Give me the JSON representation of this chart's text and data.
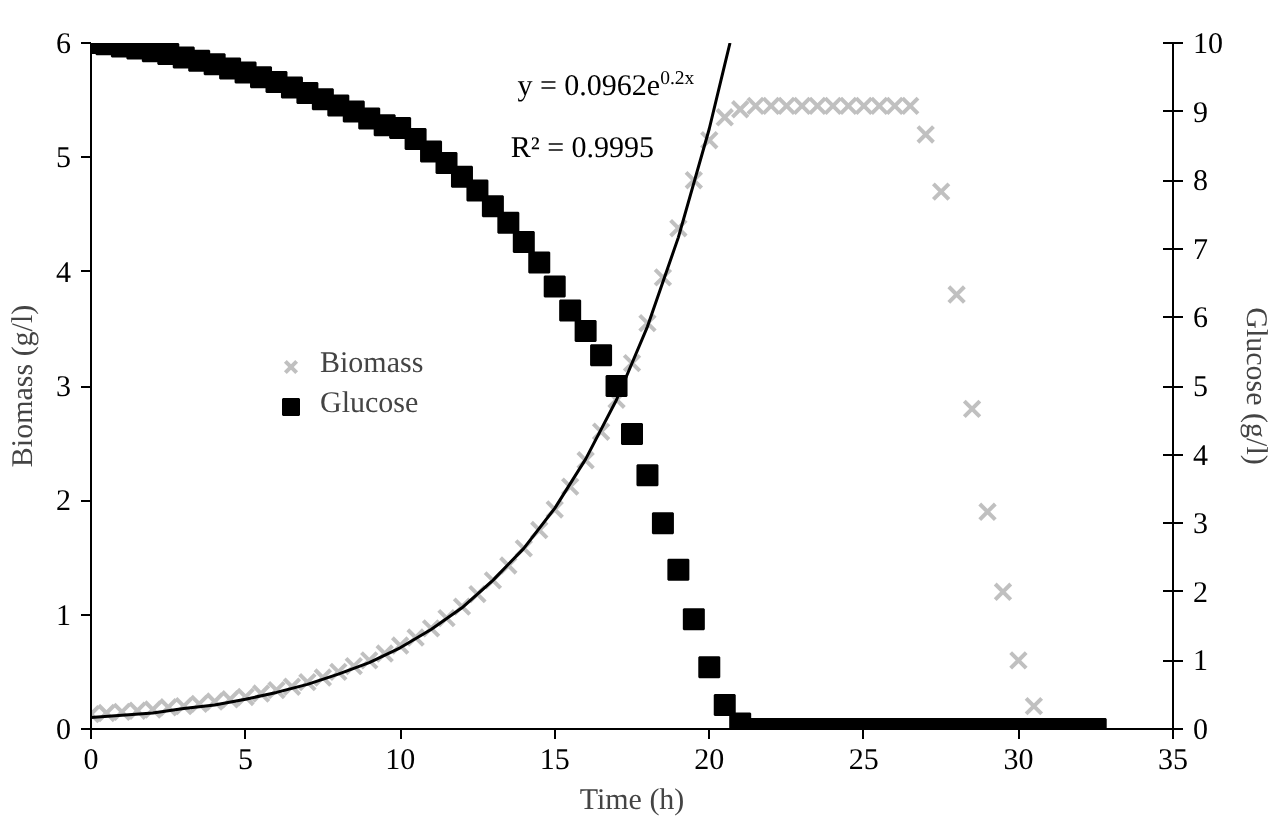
{
  "chart_data": {
    "type": "scatter",
    "xlabel": "Time (h)",
    "ylabel": "Biomass (g/l)",
    "y2label": "Glucose (g/l)",
    "annotations": [
      "y = 0.0962e$^{0.2x}$",
      "R² = 0.9995"
    ],
    "xlim": [
      0,
      35
    ],
    "xticks": [
      0,
      5,
      10,
      15,
      20,
      25,
      30,
      35
    ],
    "ylim": [
      0,
      6
    ],
    "yticks": [
      0,
      1,
      2,
      3,
      4,
      5,
      6
    ],
    "y2lim": [
      0,
      10
    ],
    "y2ticks": [
      0,
      1,
      2,
      3,
      4,
      5,
      6,
      7,
      8,
      9,
      10
    ],
    "grid": false,
    "legend": "left",
    "series": [
      {
        "name": "Biomass",
        "color": "#c0c0c0",
        "marker": "cross",
        "x": [
          0,
          0.5,
          1,
          1.5,
          2,
          2.5,
          3,
          3.5,
          4,
          4.5,
          5,
          5.5,
          6,
          6.5,
          7,
          7.5,
          8,
          8.5,
          9,
          9.5,
          10,
          10.5,
          11,
          11.5,
          12,
          12.5,
          13,
          13.5,
          14,
          14.5,
          15,
          15.5,
          16,
          16.5,
          17,
          17.5,
          18,
          18.5,
          19,
          19.5,
          20,
          20.5,
          21,
          21.5,
          22,
          22.5,
          23,
          23.5,
          24,
          24.5,
          25,
          25.5,
          26,
          26.5,
          27,
          27.5,
          28,
          28.5,
          29,
          29.5,
          30,
          30.5
        ],
        "values": [
          0.13,
          0.14,
          0.15,
          0.16,
          0.17,
          0.19,
          0.2,
          0.22,
          0.24,
          0.26,
          0.28,
          0.31,
          0.34,
          0.37,
          0.41,
          0.45,
          0.5,
          0.55,
          0.6,
          0.66,
          0.73,
          0.8,
          0.88,
          0.97,
          1.07,
          1.18,
          1.3,
          1.43,
          1.58,
          1.74,
          1.92,
          2.12,
          2.35,
          2.6,
          2.88,
          3.2,
          3.55,
          3.95,
          4.38,
          4.8,
          5.15,
          5.35,
          5.42,
          5.45,
          5.45,
          5.45,
          5.45,
          5.45,
          5.45,
          5.45,
          5.45,
          5.45,
          5.45,
          5.45,
          5.2,
          4.7,
          3.8,
          2.8,
          1.9,
          1.2,
          0.6,
          0.2
        ]
      },
      {
        "name": "Glucose",
        "color": "#000000",
        "marker": "square",
        "axis": "y2",
        "x": [
          0,
          0.5,
          1,
          1.5,
          2,
          2.5,
          3,
          3.5,
          4,
          4.5,
          5,
          5.5,
          6,
          6.5,
          7,
          7.5,
          8,
          8.5,
          9,
          9.5,
          10,
          10.5,
          11,
          11.5,
          12,
          12.5,
          13,
          13.5,
          14,
          14.5,
          15,
          15.5,
          16,
          16.5,
          17,
          17.5,
          18,
          18.5,
          19,
          19.5,
          20,
          20.5,
          21,
          21.5,
          22,
          22.5,
          23,
          23.5,
          24,
          24.5,
          25,
          25.5,
          26,
          26.5,
          27,
          27.5,
          28,
          28.5,
          29,
          29.5,
          30,
          30.5,
          31,
          31.5,
          32,
          32.5
        ],
        "values": [
          10,
          9.98,
          9.95,
          9.92,
          9.88,
          9.84,
          9.79,
          9.74,
          9.69,
          9.63,
          9.57,
          9.5,
          9.43,
          9.35,
          9.27,
          9.18,
          9.09,
          9.0,
          8.9,
          8.8,
          8.76,
          8.6,
          8.42,
          8.25,
          8.05,
          7.85,
          7.62,
          7.38,
          7.1,
          6.8,
          6.45,
          6.1,
          5.8,
          5.45,
          5.0,
          4.3,
          3.7,
          3.0,
          2.32,
          1.6,
          0.9,
          0.35,
          0.08,
          0,
          0,
          0,
          0,
          0,
          0,
          0,
          0,
          0,
          0,
          0,
          0,
          0,
          0,
          0,
          0,
          0,
          0,
          0,
          0,
          0,
          0,
          0
        ]
      },
      {
        "type": "line",
        "color": "#000000",
        "line_style": "solid",
        "x": [
          0,
          1,
          2,
          3,
          4,
          5,
          6,
          7,
          8,
          9,
          10,
          11,
          12,
          13,
          14,
          15,
          16,
          17,
          18,
          19,
          20,
          20.5,
          20.67
        ],
        "values": [
          0.1,
          0.12,
          0.14,
          0.18,
          0.21,
          0.26,
          0.32,
          0.39,
          0.48,
          0.58,
          0.71,
          0.87,
          1.06,
          1.3,
          1.58,
          1.93,
          2.36,
          2.88,
          3.52,
          4.3,
          5.25,
          5.81,
          6.0
        ]
      }
    ]
  }
}
